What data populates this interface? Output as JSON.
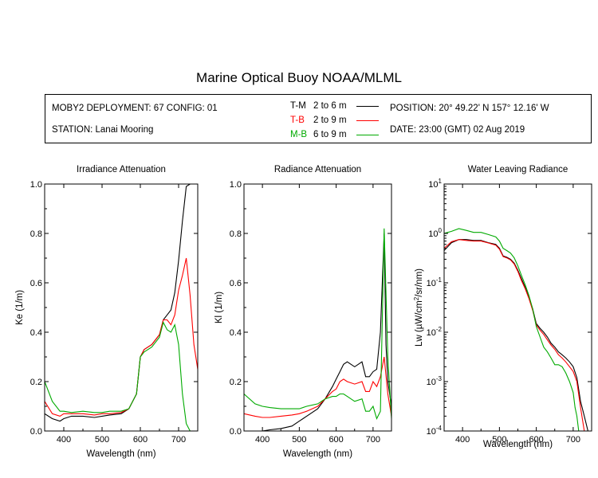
{
  "title": "Marine Optical Buoy NOAA/MLML",
  "info": {
    "deployment": "MOBY2 DEPLOYMENT: 67 CONFIG: 01",
    "station": "STATION: Lanai Mooring",
    "position": "POSITION: 20° 49.22' N   157° 12.16' W",
    "date": "DATE: 23:00 (GMT) 02 Aug 2019"
  },
  "legend": [
    {
      "code": "T-M",
      "depth": "2 to 6  m",
      "color": "#000000"
    },
    {
      "code": "T-B",
      "depth": "2 to 9  m",
      "color": "#ff0000"
    },
    {
      "code": "M-B",
      "depth": "6 to 9  m",
      "color": "#00aa00"
    }
  ],
  "chart_data": [
    {
      "type": "line",
      "title": "Irradiance Attenuation",
      "xlabel": "Wavelength (nm)",
      "ylabel": "Ke  (1/m)",
      "xlim": [
        350,
        750
      ],
      "ylim": [
        0,
        1
      ],
      "xticks": [
        "400",
        "500",
        "600",
        "700"
      ],
      "yticks": [
        "0.0",
        "0.2",
        "0.4",
        "0.6",
        "0.8",
        "1.0"
      ],
      "series": [
        {
          "name": "T-M",
          "color": "#000000",
          "x": [
            350,
            370,
            390,
            400,
            420,
            450,
            480,
            500,
            520,
            550,
            570,
            590,
            600,
            610,
            630,
            650,
            660,
            670,
            680,
            690,
            700,
            710,
            720,
            730,
            740,
            750
          ],
          "y": [
            0.07,
            0.05,
            0.04,
            0.05,
            0.06,
            0.06,
            0.055,
            0.06,
            0.065,
            0.07,
            0.09,
            0.15,
            0.3,
            0.33,
            0.35,
            0.39,
            0.45,
            0.47,
            0.49,
            0.56,
            0.69,
            0.85,
            0.99,
            1.0,
            1.0,
            1.0
          ]
        },
        {
          "name": "T-B",
          "color": "#ff0000",
          "x": [
            350,
            370,
            390,
            400,
            420,
            450,
            480,
            500,
            520,
            550,
            570,
            590,
            600,
            610,
            630,
            650,
            660,
            670,
            680,
            690,
            700,
            710,
            720,
            730,
            740,
            750
          ],
          "y": [
            0.12,
            0.07,
            0.06,
            0.07,
            0.07,
            0.07,
            0.065,
            0.07,
            0.07,
            0.075,
            0.09,
            0.15,
            0.3,
            0.33,
            0.35,
            0.39,
            0.45,
            0.45,
            0.43,
            0.47,
            0.57,
            0.63,
            0.7,
            0.55,
            0.35,
            0.25
          ]
        },
        {
          "name": "M-B",
          "color": "#00aa00",
          "x": [
            350,
            370,
            390,
            400,
            420,
            450,
            480,
            500,
            520,
            550,
            570,
            590,
            600,
            610,
            630,
            650,
            660,
            670,
            680,
            690,
            700,
            710,
            720,
            730
          ],
          "y": [
            0.2,
            0.12,
            0.08,
            0.08,
            0.075,
            0.08,
            0.075,
            0.075,
            0.08,
            0.08,
            0.09,
            0.15,
            0.3,
            0.32,
            0.34,
            0.38,
            0.44,
            0.41,
            0.4,
            0.43,
            0.35,
            0.15,
            0.03,
            0.0
          ]
        }
      ]
    },
    {
      "type": "line",
      "title": "Radiance Attenuation",
      "xlabel": "Wavelength (nm)",
      "ylabel": "Kl  (1/m)",
      "xlim": [
        350,
        750
      ],
      "ylim": [
        0,
        1
      ],
      "xticks": [
        "400",
        "500",
        "600",
        "700"
      ],
      "yticks": [
        "0.0",
        "0.2",
        "0.4",
        "0.6",
        "0.8",
        "1.0"
      ],
      "series": [
        {
          "name": "T-M",
          "color": "#000000",
          "x": [
            350,
            380,
            400,
            420,
            450,
            480,
            500,
            520,
            550,
            570,
            590,
            600,
            610,
            620,
            630,
            650,
            670,
            680,
            690,
            700,
            710,
            720,
            730,
            735,
            740,
            750
          ],
          "y": [
            0.0,
            0.0,
            0.0,
            0.005,
            0.01,
            0.02,
            0.04,
            0.06,
            0.09,
            0.13,
            0.18,
            0.21,
            0.24,
            0.27,
            0.28,
            0.26,
            0.28,
            0.22,
            0.22,
            0.24,
            0.25,
            0.4,
            0.8,
            0.35,
            0.2,
            0.1
          ]
        },
        {
          "name": "T-B",
          "color": "#ff0000",
          "x": [
            350,
            380,
            400,
            420,
            450,
            480,
            500,
            520,
            550,
            570,
            590,
            600,
            610,
            620,
            630,
            650,
            670,
            680,
            690,
            700,
            710,
            720,
            730,
            740,
            750
          ],
          "y": [
            0.07,
            0.06,
            0.055,
            0.055,
            0.06,
            0.065,
            0.07,
            0.08,
            0.1,
            0.13,
            0.16,
            0.17,
            0.2,
            0.21,
            0.2,
            0.19,
            0.2,
            0.16,
            0.16,
            0.2,
            0.18,
            0.22,
            0.3,
            0.15,
            0.06
          ]
        },
        {
          "name": "M-B",
          "color": "#00aa00",
          "x": [
            350,
            380,
            400,
            420,
            450,
            480,
            500,
            520,
            550,
            570,
            590,
            600,
            610,
            620,
            630,
            650,
            670,
            680,
            690,
            700,
            710,
            720,
            730,
            740,
            750
          ],
          "y": [
            0.15,
            0.11,
            0.1,
            0.095,
            0.09,
            0.09,
            0.09,
            0.1,
            0.11,
            0.13,
            0.14,
            0.14,
            0.15,
            0.15,
            0.14,
            0.12,
            0.13,
            0.08,
            0.08,
            0.1,
            0.05,
            0.08,
            0.82,
            0.3,
            0.05
          ]
        }
      ]
    },
    {
      "type": "line",
      "title": "Water Leaving Radiance",
      "xlabel": "Wavelength (nm)",
      "ylabel": "Lw  (µW/cm²/sr/nm)",
      "ylabel_parts": [
        "Lw  (",
        "µW/cm",
        "2",
        "/sr/nm)"
      ],
      "yscale": "log",
      "xlim": [
        350,
        750
      ],
      "ylim": [
        0.0001,
        10
      ],
      "xticks": [
        "400",
        "500",
        "600",
        "700"
      ],
      "yticks": [
        {
          "base": "10",
          "exp": "1"
        },
        {
          "base": "10",
          "exp": "0"
        },
        {
          "base": "10",
          "exp": "-1"
        },
        {
          "base": "10",
          "exp": "-2"
        },
        {
          "base": "10",
          "exp": "-3"
        },
        {
          "base": "10",
          "exp": "-4"
        }
      ],
      "series": [
        {
          "name": "T-M",
          "color": "#000000",
          "x": [
            350,
            370,
            390,
            410,
            430,
            450,
            470,
            490,
            500,
            510,
            520,
            530,
            540,
            550,
            560,
            570,
            580,
            590,
            600,
            610,
            620,
            630,
            640,
            650,
            660,
            670,
            680,
            690,
            700,
            710,
            720,
            730,
            740
          ],
          "y": [
            0.45,
            0.65,
            0.75,
            0.75,
            0.72,
            0.72,
            0.65,
            0.6,
            0.5,
            0.35,
            0.33,
            0.3,
            0.25,
            0.18,
            0.12,
            0.08,
            0.05,
            0.03,
            0.015,
            0.012,
            0.01,
            0.008,
            0.006,
            0.005,
            0.004,
            0.0035,
            0.003,
            0.0025,
            0.002,
            0.0012,
            0.0004,
            0.0002,
            0.0001
          ]
        },
        {
          "name": "T-B",
          "color": "#ff0000",
          "x": [
            350,
            370,
            390,
            410,
            430,
            450,
            470,
            490,
            500,
            510,
            520,
            530,
            540,
            550,
            560,
            570,
            580,
            590,
            600,
            610,
            620,
            630,
            640,
            650,
            660,
            670,
            680,
            690,
            700,
            710,
            720,
            730,
            740
          ],
          "y": [
            0.5,
            0.68,
            0.75,
            0.72,
            0.7,
            0.7,
            0.64,
            0.58,
            0.48,
            0.34,
            0.32,
            0.29,
            0.24,
            0.17,
            0.11,
            0.075,
            0.048,
            0.028,
            0.014,
            0.011,
            0.009,
            0.007,
            0.0055,
            0.0045,
            0.0035,
            0.003,
            0.0025,
            0.002,
            0.0016,
            0.001,
            0.0003,
            0.0001,
            0.0001
          ]
        },
        {
          "name": "M-B",
          "color": "#00aa00",
          "x": [
            350,
            370,
            390,
            410,
            430,
            450,
            470,
            490,
            500,
            510,
            520,
            530,
            540,
            550,
            560,
            570,
            580,
            590,
            600,
            610,
            620,
            630,
            640,
            650,
            660,
            670,
            680,
            690,
            700,
            705,
            710,
            715,
            720
          ],
          "y": [
            1.0,
            1.1,
            1.25,
            1.15,
            1.05,
            1.05,
            0.95,
            0.85,
            0.7,
            0.5,
            0.45,
            0.4,
            0.32,
            0.22,
            0.14,
            0.09,
            0.055,
            0.03,
            0.013,
            0.008,
            0.005,
            0.004,
            0.003,
            0.0022,
            0.0022,
            0.002,
            0.0015,
            0.001,
            0.0006,
            0.0003,
            0.0002,
            0.0001,
            0.0001
          ]
        }
      ]
    }
  ]
}
